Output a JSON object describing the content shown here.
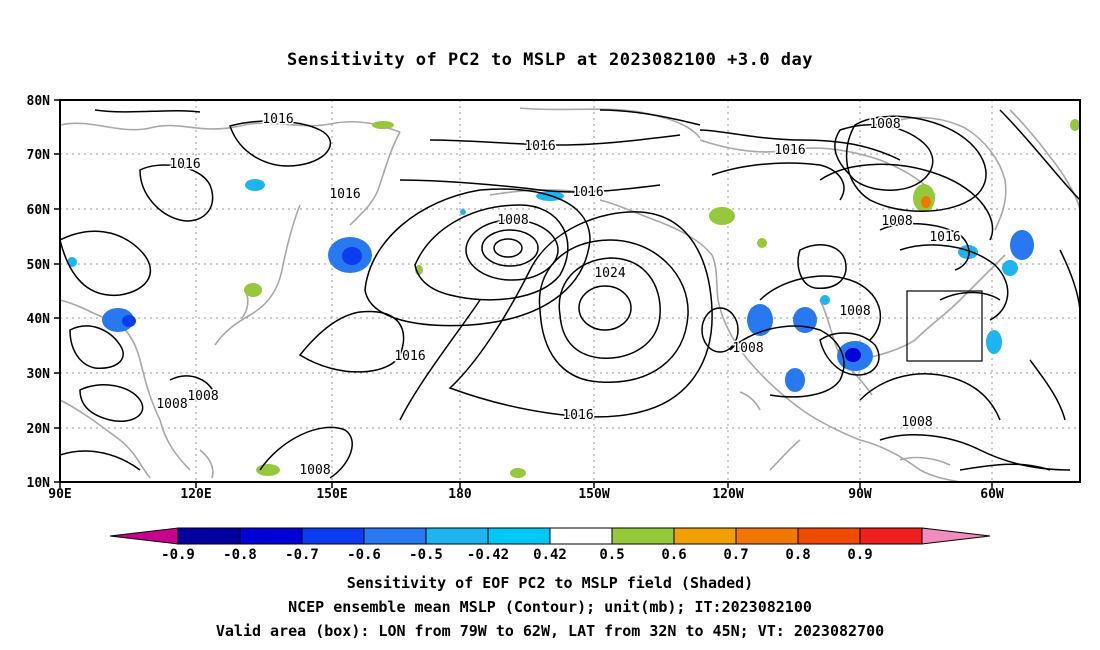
{
  "title": "Sensitivity of PC2 to MSLP at 2023082100 +3.0 day",
  "captions": [
    "Sensitivity of EOF PC2 to MSLP field (Shaded)",
    "NCEP ensemble mean MSLP (Contour); unit(mb); IT:2023082100",
    "Valid area (box): LON from 79W to 62W, LAT from 32N to 45N; VT: 2023082700"
  ],
  "map": {
    "lat_labels": [
      "80N",
      "70N",
      "60N",
      "50N",
      "40N",
      "30N",
      "20N",
      "10N"
    ],
    "lon_labels": [
      "90E",
      "120E",
      "150E",
      "180",
      "150W",
      "120W",
      "90W",
      "60W"
    ],
    "contour_labels": [
      "1016",
      "1016",
      "1016",
      "1016",
      "1016",
      "1016",
      "1016",
      "1016",
      "1008",
      "1024",
      "1008",
      "1008",
      "1008",
      "1008",
      "1008",
      "1016",
      "1008",
      "1008",
      "1008"
    ],
    "box": {
      "lon_from": "79W",
      "lon_to": "62W",
      "lat_from": "32N",
      "lat_to": "45N"
    }
  },
  "colorbar": {
    "labels": [
      "-0.9",
      "-0.8",
      "-0.7",
      "-0.6",
      "-0.5",
      "-0.42",
      "0.42",
      "0.5",
      "0.6",
      "0.7",
      "0.8",
      "0.9"
    ],
    "colors": [
      "#c8008c",
      "#0000a0",
      "#0000d8",
      "#0a3cf0",
      "#2878f0",
      "#1eb4f0",
      "#00c8f5",
      "#ffffff",
      "#96c83c",
      "#f0a000",
      "#f07800",
      "#f04b00",
      "#f01e1e",
      "#f08cbe"
    ]
  }
}
